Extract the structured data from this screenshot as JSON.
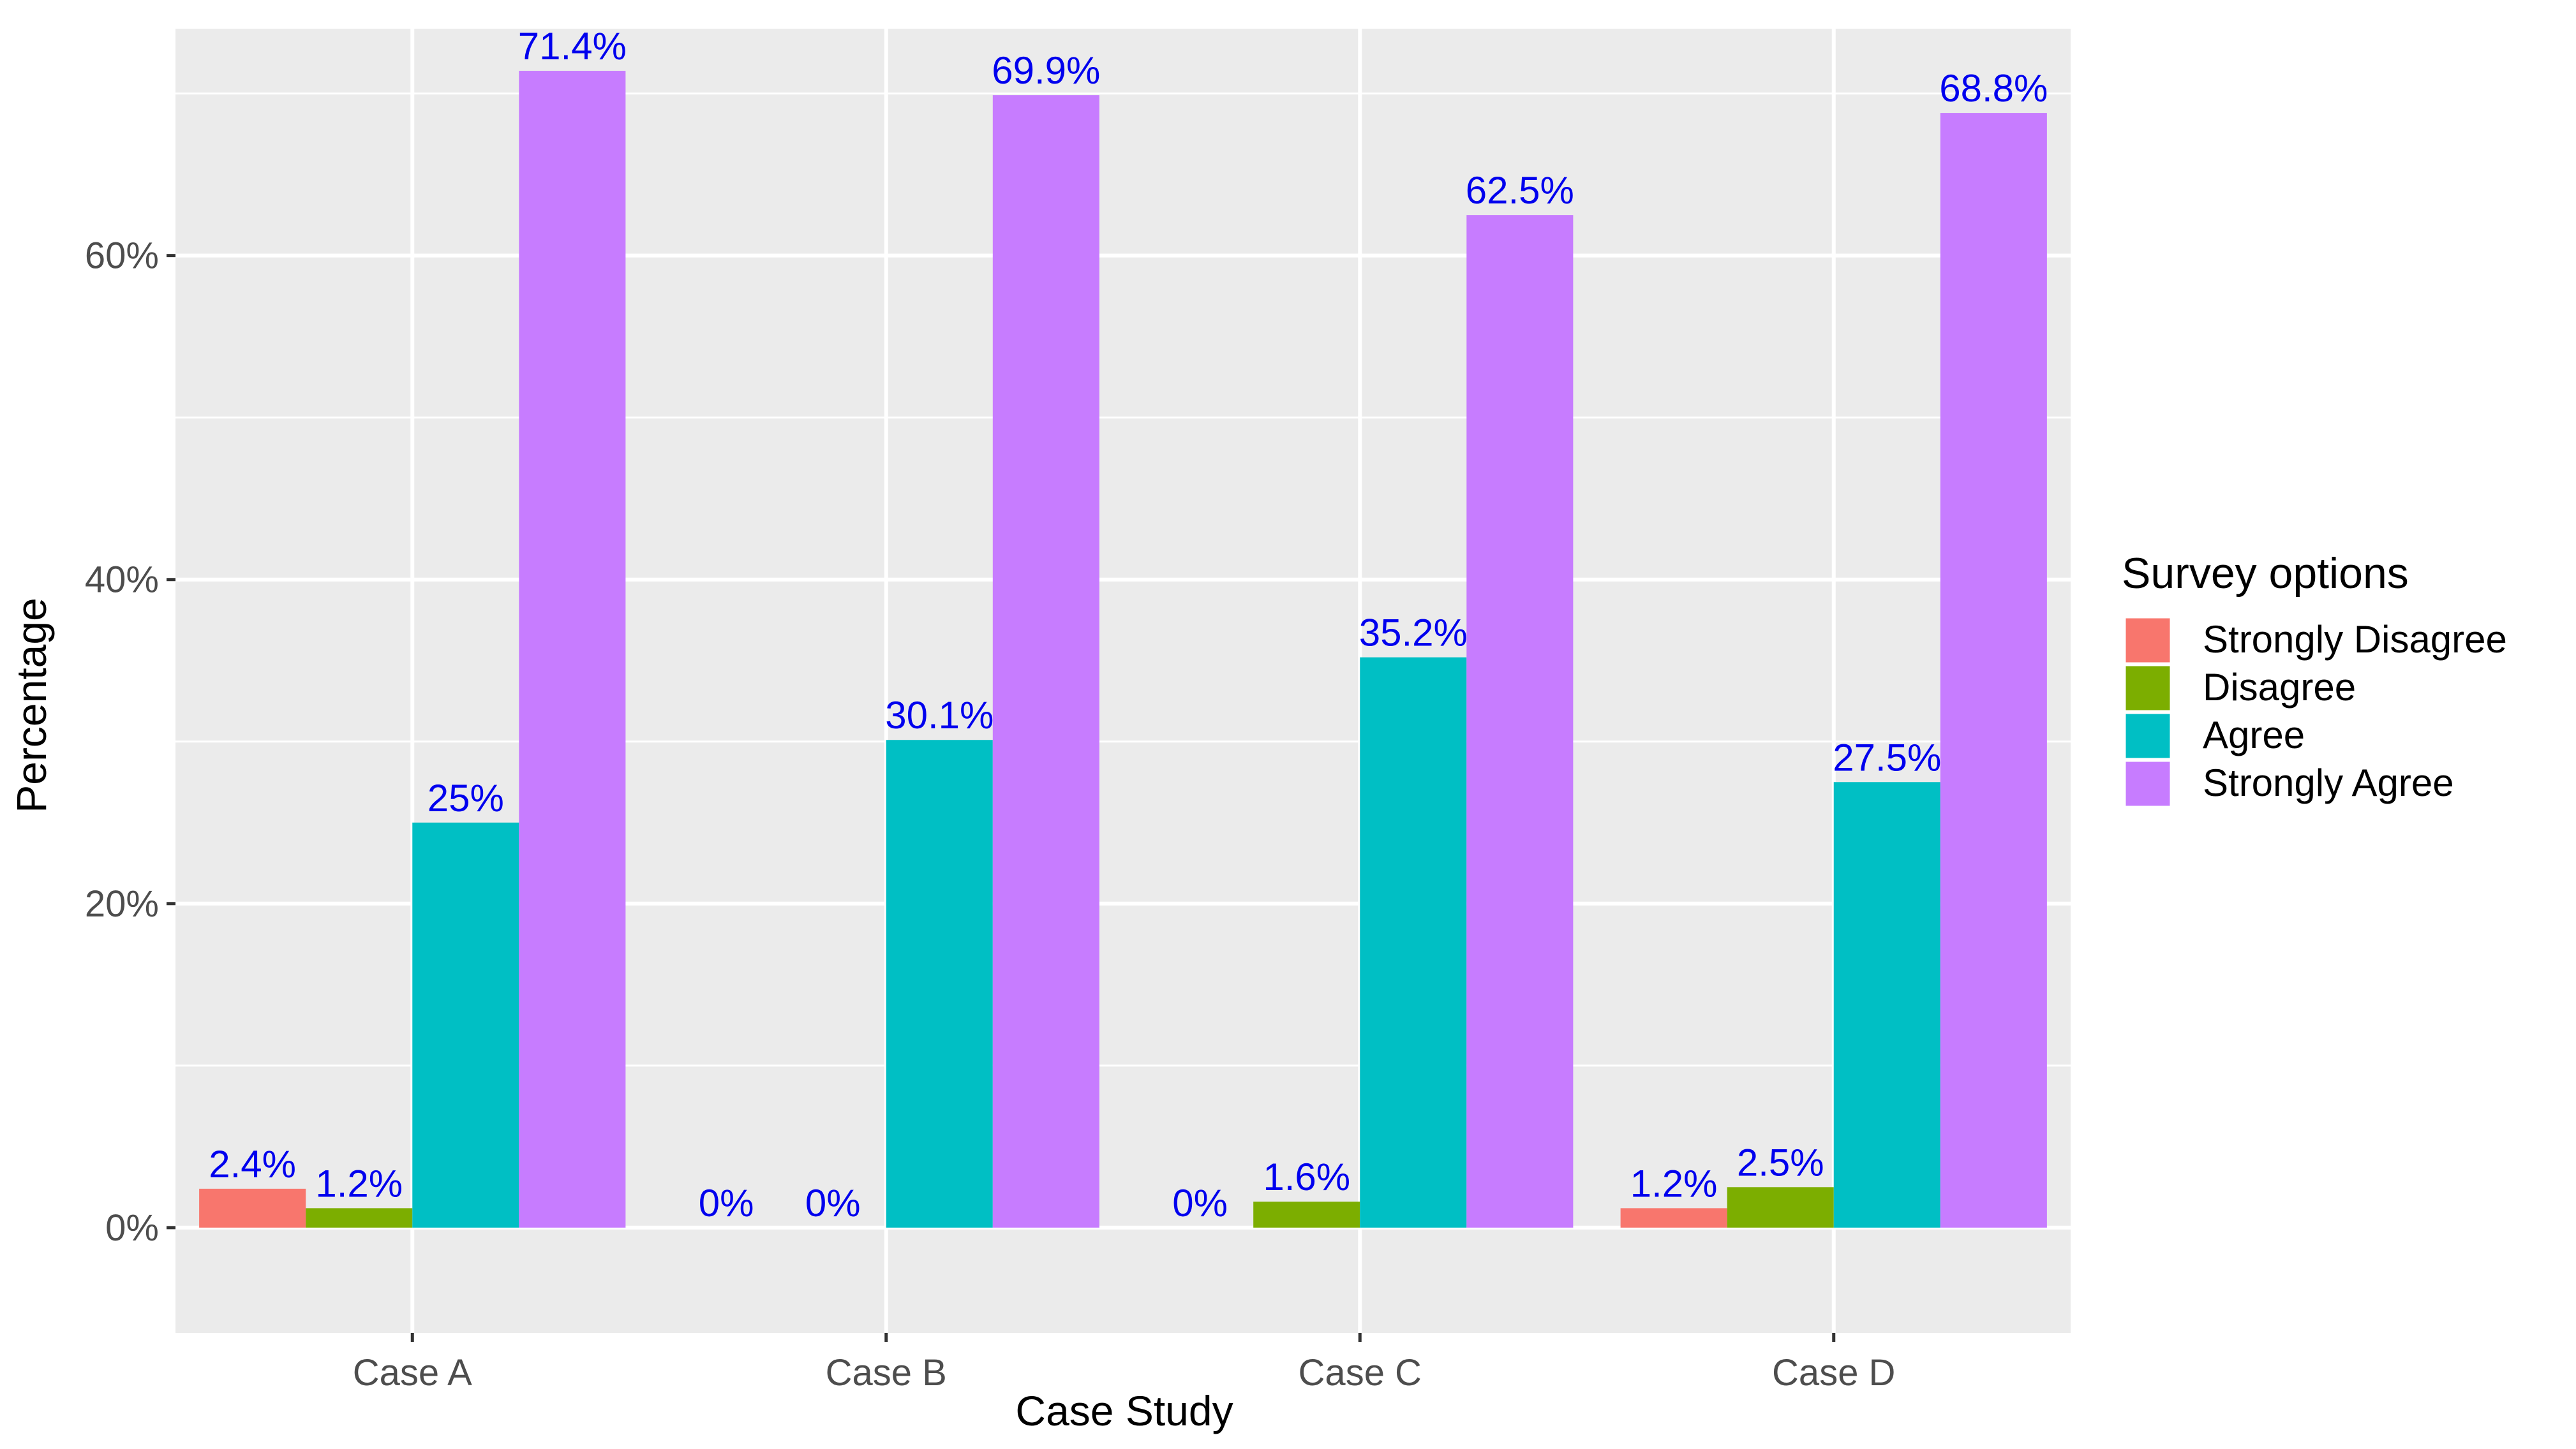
{
  "chart_data": {
    "type": "bar",
    "title": "",
    "xlabel": "Case Study",
    "ylabel": "Percentage",
    "ylim": [
      -6.5,
      74
    ],
    "ytick_values": [
      0,
      20,
      40,
      60
    ],
    "ytick_labels": [
      "0%",
      "20%",
      "40%",
      "60%"
    ],
    "grid": true,
    "categories": [
      "Case A",
      "Case B",
      "Case C",
      "Case D"
    ],
    "legend": {
      "title": "Survey options",
      "position": "right"
    },
    "series": [
      {
        "name": "Strongly Disagree",
        "color": "#F8766D",
        "values": [
          2.4,
          0,
          0,
          1.2
        ],
        "labels": [
          "2.4%",
          "0%",
          "0%",
          "1.2%"
        ]
      },
      {
        "name": "Disagree",
        "color": "#7CAE00",
        "values": [
          1.2,
          0,
          1.6,
          2.5
        ],
        "labels": [
          "1.2%",
          "0%",
          "1.6%",
          "2.5%"
        ]
      },
      {
        "name": "Agree",
        "color": "#00BFC4",
        "values": [
          25,
          30.1,
          35.2,
          27.5
        ],
        "labels": [
          "25%",
          "30.1%",
          "35.2%",
          "27.5%"
        ]
      },
      {
        "name": "Strongly Agree",
        "color": "#C77CFF",
        "values": [
          71.4,
          69.9,
          62.5,
          68.8
        ],
        "labels": [
          "71.4%",
          "69.9%",
          "62.5%",
          "68.8%"
        ]
      }
    ],
    "data_label_color": "#0000EE",
    "panel_color": "#EBEBEB",
    "grid_color": "#FFFFFF",
    "tick_label_color": "#4D4D4D",
    "axis_title_color": "#000000"
  }
}
